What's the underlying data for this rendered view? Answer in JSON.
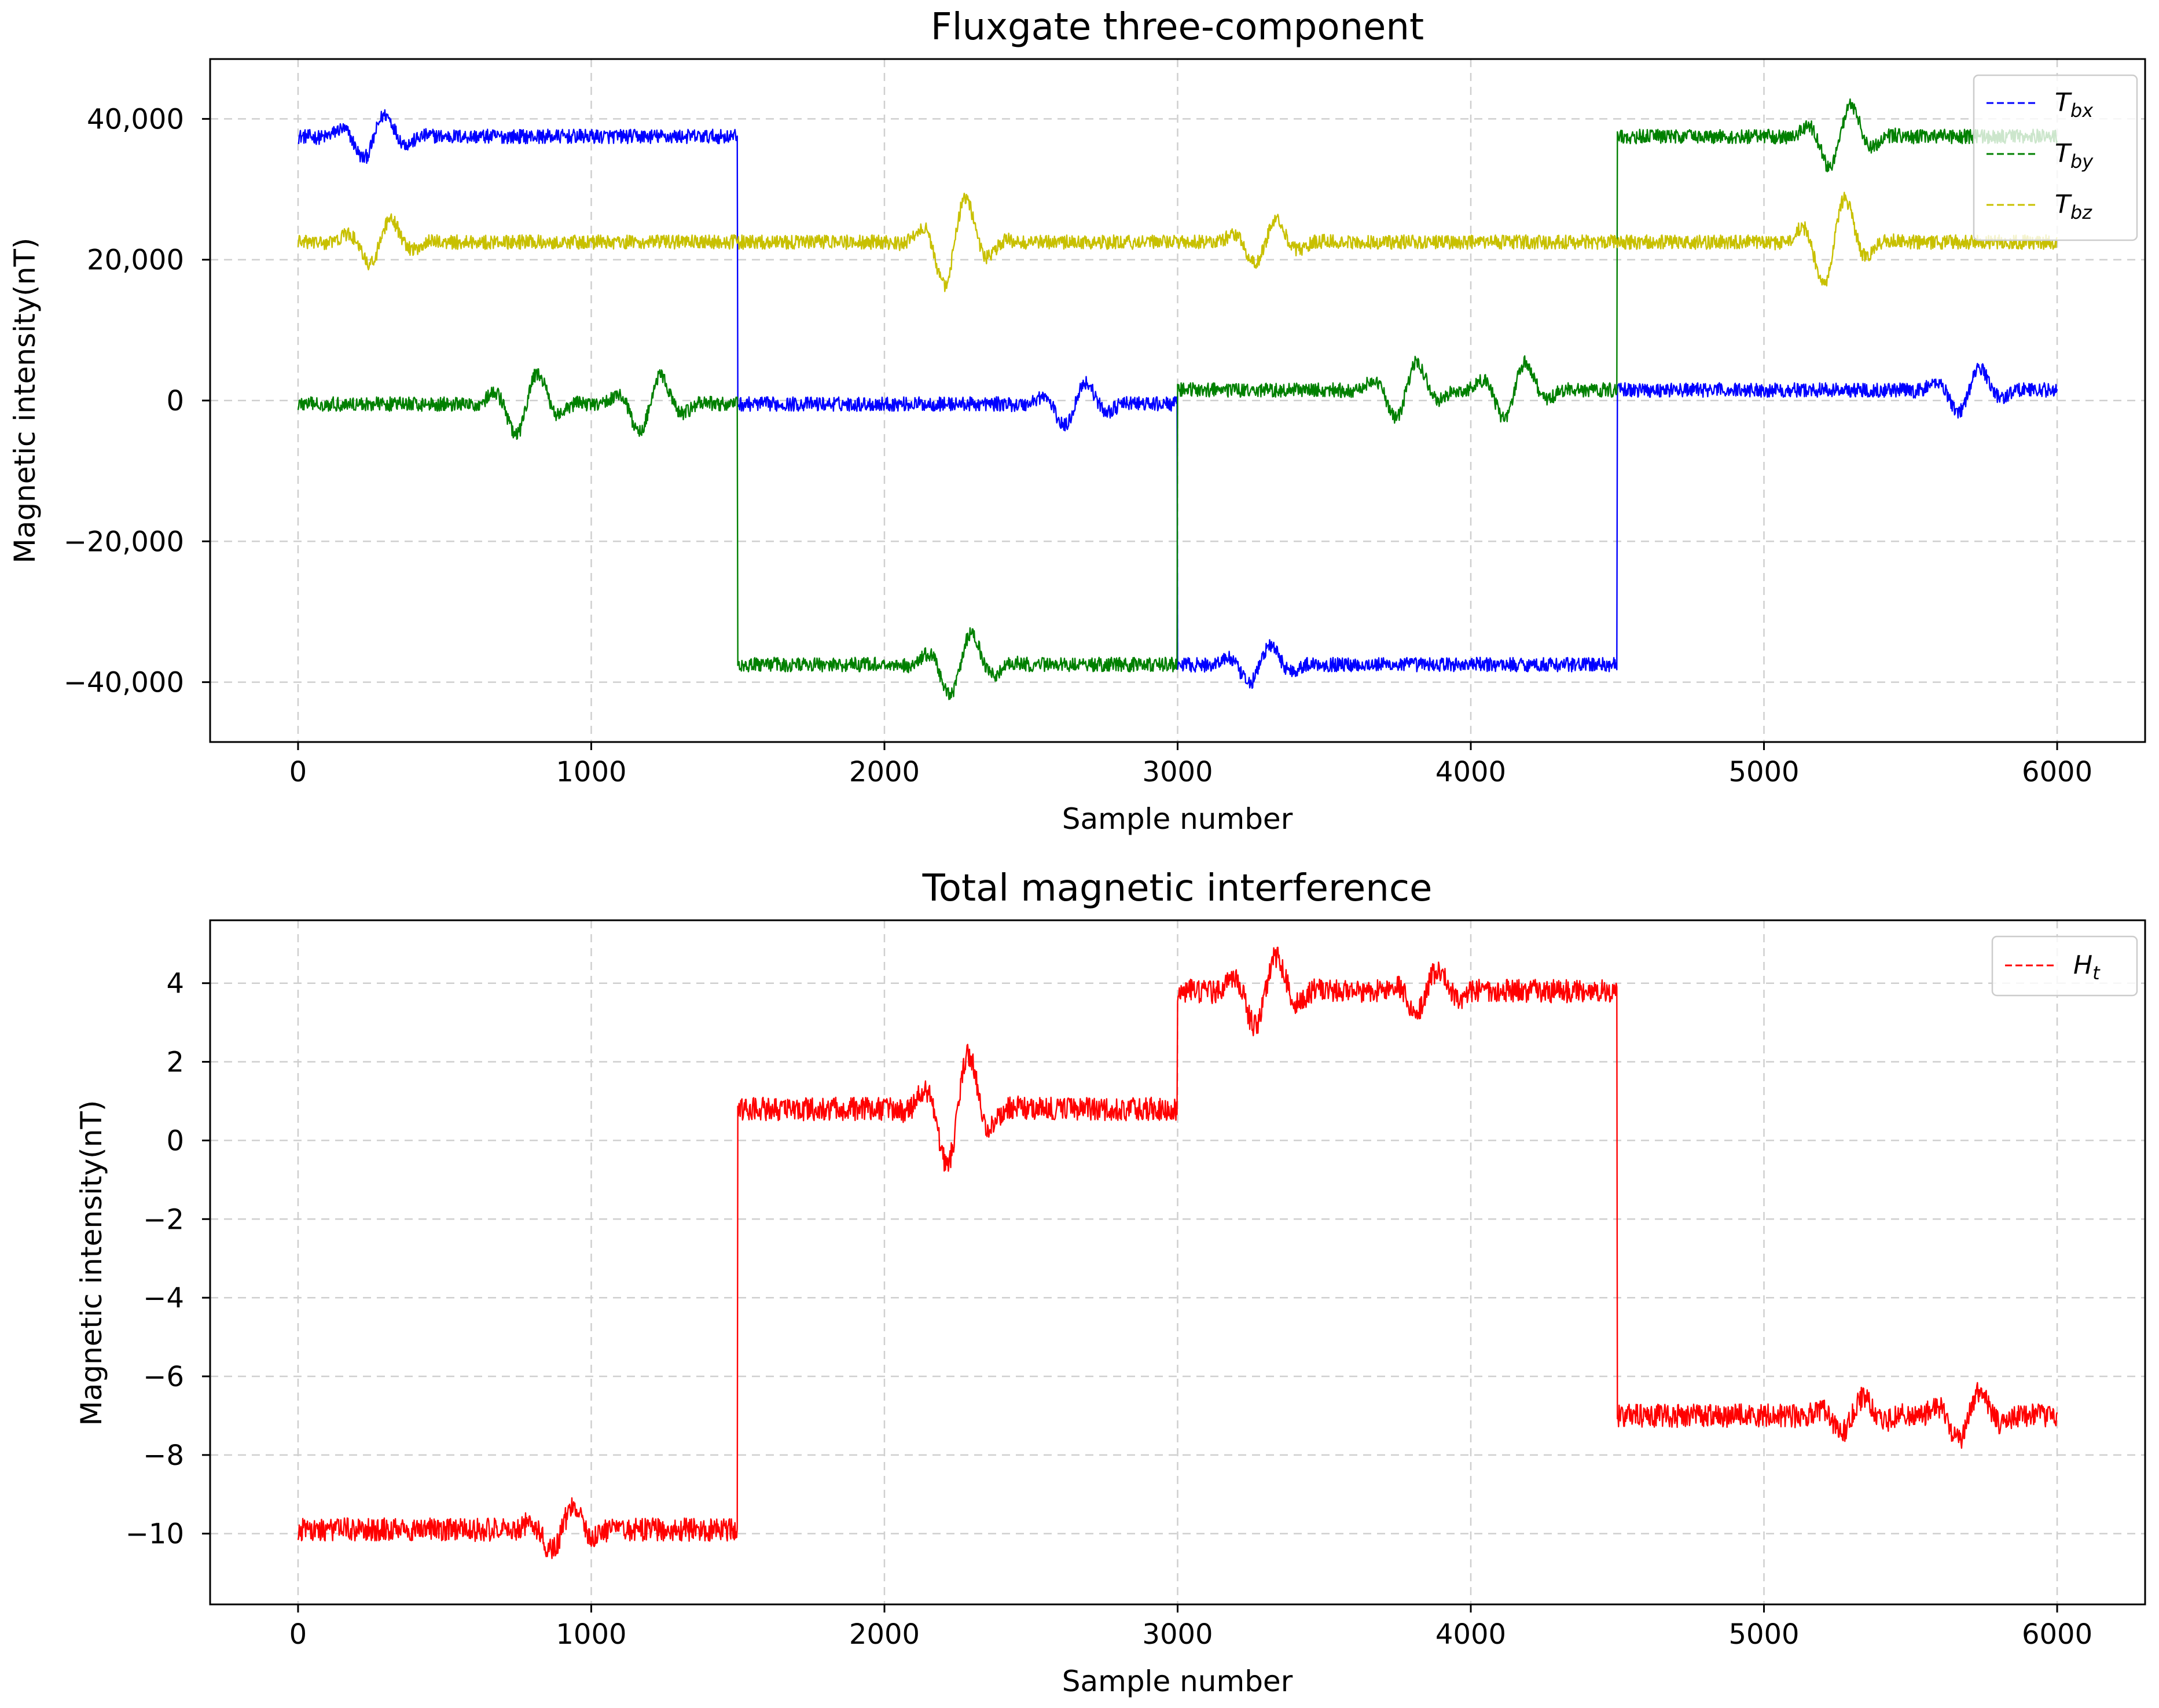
{
  "chart_data": [
    {
      "type": "line",
      "title": "Fluxgate three-component",
      "xlabel": "Sample number",
      "ylabel": "Magnetic intensity(nT)",
      "xlim": [
        -300,
        6300
      ],
      "ylim": [
        -48500,
        48500
      ],
      "xticks": [
        0,
        1000,
        2000,
        3000,
        4000,
        5000,
        6000
      ],
      "xtick_labels": [
        "0",
        "1000",
        "2000",
        "3000",
        "4000",
        "5000",
        "6000"
      ],
      "yticks": [
        40000,
        20000,
        0,
        -20000,
        -40000
      ],
      "ytick_labels": [
        "40,000",
        "20,000",
        "0",
        "−20,000",
        "−40,000"
      ],
      "grid": true,
      "legend_position": "top-right",
      "noise_amplitude": 1200,
      "series": [
        {
          "name_main": "T",
          "name_sub": "bx",
          "color": "#0000ff",
          "line_style": "dashed",
          "segments": [
            {
              "x_start": 0,
              "x_end": 1500,
              "level": 37500
            },
            {
              "x_start": 1500,
              "x_end": 3000,
              "level": -500
            },
            {
              "x_start": 3000,
              "x_end": 4500,
              "level": -37500
            },
            {
              "x_start": 4500,
              "x_end": 6000,
              "level": 1500
            }
          ],
          "bursts": [
            {
              "center": 260,
              "amplitude": 3500
            },
            {
              "center": 2650,
              "amplitude": 3500
            },
            {
              "center": 3280,
              "amplitude": 3000
            },
            {
              "center": 5700,
              "amplitude": 3500
            }
          ]
        },
        {
          "name_main": "T",
          "name_sub": "by",
          "color": "#008000",
          "line_style": "dashed",
          "segments": [
            {
              "x_start": 0,
              "x_end": 1500,
              "level": -500
            },
            {
              "x_start": 1500,
              "x_end": 3000,
              "level": -37500
            },
            {
              "x_start": 3000,
              "x_end": 4500,
              "level": 1500
            },
            {
              "x_start": 4500,
              "x_end": 6000,
              "level": 37500
            }
          ],
          "bursts": [
            {
              "center": 780,
              "amplitude": 5000
            },
            {
              "center": 1200,
              "amplitude": 4500
            },
            {
              "center": 2260,
              "amplitude": 5000
            },
            {
              "center": 3780,
              "amplitude": 4500
            },
            {
              "center": 4150,
              "amplitude": 4500
            },
            {
              "center": 5260,
              "amplitude": 5000
            }
          ]
        },
        {
          "name_main": "T",
          "name_sub": "bz",
          "color": "#c8c000",
          "line_style": "dashed",
          "segments": [
            {
              "x_start": 0,
              "x_end": 6000,
              "level": 22500
            }
          ],
          "bursts": [
            {
              "center": 280,
              "amplitude": 3500
            },
            {
              "center": 2240,
              "amplitude": 7000
            },
            {
              "center": 3300,
              "amplitude": 3500
            },
            {
              "center": 5240,
              "amplitude": 7000
            }
          ]
        }
      ]
    },
    {
      "type": "line",
      "title": "Total magnetic interference",
      "xlabel": "Sample number",
      "ylabel": "Magnetic intensity(nT)",
      "xlim": [
        -300,
        6300
      ],
      "ylim": [
        -11.8,
        5.6
      ],
      "xticks": [
        0,
        1000,
        2000,
        3000,
        4000,
        5000,
        6000
      ],
      "xtick_labels": [
        "0",
        "1000",
        "2000",
        "3000",
        "4000",
        "5000",
        "6000"
      ],
      "yticks": [
        4,
        2,
        0,
        -2,
        -4,
        -6,
        -8,
        -10
      ],
      "ytick_labels": [
        "4",
        "2",
        "0",
        "−2",
        "−4",
        "−6",
        "−8",
        "−10"
      ],
      "grid": true,
      "legend_position": "top-right",
      "noise_amplitude": 0.35,
      "series": [
        {
          "name_main": "H",
          "name_sub": "t",
          "color": "#ff0000",
          "line_style": "dashed",
          "segments": [
            {
              "x_start": 0,
              "x_end": 1500,
              "level": -9.9
            },
            {
              "x_start": 1500,
              "x_end": 3000,
              "level": 0.8
            },
            {
              "x_start": 3000,
              "x_end": 4500,
              "level": 3.8
            },
            {
              "x_start": 4500,
              "x_end": 6000,
              "level": -7.0
            }
          ],
          "bursts": [
            {
              "center": 900,
              "amplitude": 0.6
            },
            {
              "center": 2250,
              "amplitude": 1.6
            },
            {
              "center": 3300,
              "amplitude": 1.0
            },
            {
              "center": 3850,
              "amplitude": 0.6
            },
            {
              "center": 5300,
              "amplitude": 0.5
            },
            {
              "center": 5700,
              "amplitude": 0.7
            }
          ]
        }
      ]
    }
  ]
}
